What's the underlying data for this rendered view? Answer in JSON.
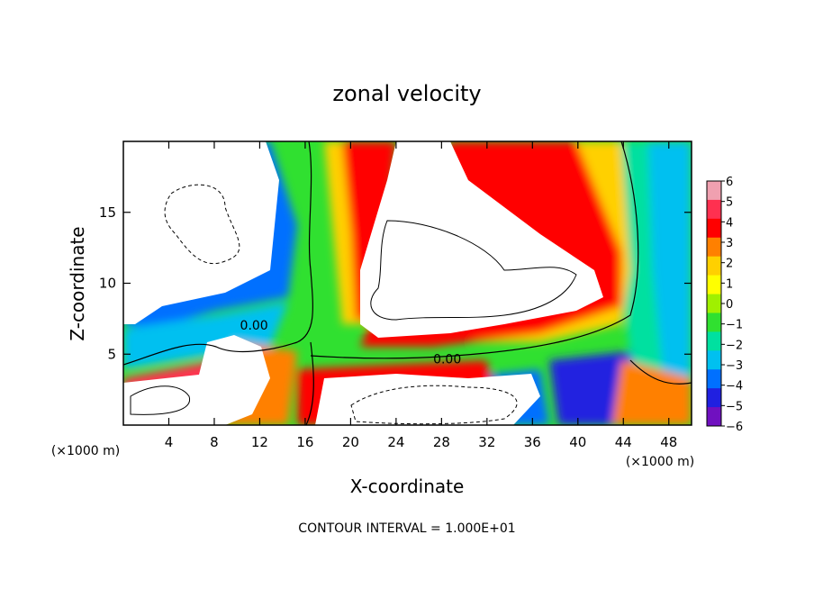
{
  "chart_data": {
    "type": "heatmap",
    "title": "zonal velocity",
    "xlabel": "X-coordinate",
    "ylabel": "Z-coordinate",
    "x_unit_label": "(×1000 m)",
    "x_unit_label_right": "(×1000 m)",
    "xlim": [
      0,
      50
    ],
    "ylim": [
      0,
      20
    ],
    "x_ticks": [
      4,
      8,
      12,
      16,
      20,
      24,
      28,
      32,
      36,
      40,
      44,
      48
    ],
    "y_ticks": [
      5,
      10,
      15
    ],
    "colorbar": {
      "labels": [
        "6",
        "5",
        "4",
        "3",
        "2",
        "1",
        "0",
        "−1",
        "−2",
        "−3",
        "−4",
        "−5",
        "−6"
      ],
      "values": [
        6,
        5,
        4,
        3,
        2,
        1,
        0,
        -1,
        -2,
        -3,
        -4,
        -5,
        -6
      ],
      "colors": [
        "#f0a0b0",
        "#ff3050",
        "#ff0000",
        "#ff8000",
        "#ffd000",
        "#ffff00",
        "#a0f000",
        "#30e030",
        "#00e0a0",
        "#00c0f0",
        "#0070ff",
        "#2020e0",
        "#7010c0"
      ]
    },
    "contour_labels": [
      {
        "text": "0.00",
        "x": 11.5,
        "y": 7.0
      },
      {
        "text": "0.00",
        "x": 28.5,
        "y": 4.6
      }
    ],
    "footnote": "CONTOUR INTERVAL = 1.000E+01"
  }
}
